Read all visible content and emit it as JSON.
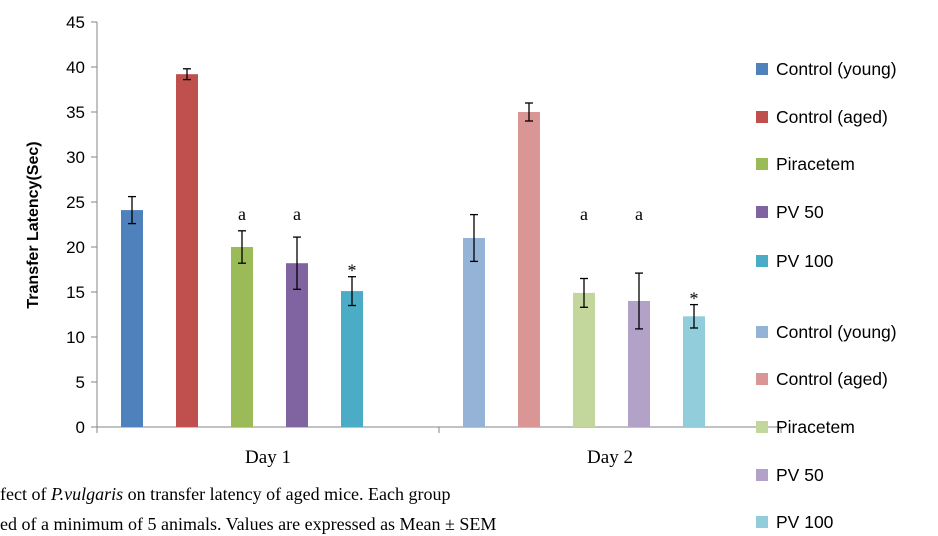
{
  "chart_data": {
    "type": "bar",
    "title": "",
    "xlabel": "",
    "ylabel": "Transfer Latency(Sec)",
    "ylim": [
      0,
      45
    ],
    "yticks": [
      0,
      5,
      10,
      15,
      20,
      25,
      30,
      35,
      40,
      45
    ],
    "grid": false,
    "legend_position": "right",
    "categories": [
      "Day 1",
      "Day 2"
    ],
    "groups": [
      {
        "category": "Day 1",
        "bars": [
          {
            "name": "Control (young)",
            "value": 24.1,
            "error": 1.5,
            "annotation": "",
            "color": "#4f81bd"
          },
          {
            "name": "Control (aged)",
            "value": 39.2,
            "error": 0.6,
            "annotation": "",
            "color": "#c0504d"
          },
          {
            "name": "Piracetem",
            "value": 20.0,
            "error": 1.8,
            "annotation": "a",
            "color": "#9bbb59"
          },
          {
            "name": "PV 50",
            "value": 18.2,
            "error": 2.9,
            "annotation": "a",
            "color": "#8064a2"
          },
          {
            "name": "PV 100",
            "value": 15.1,
            "error": 1.6,
            "annotation": "*",
            "color": "#4bacc6"
          }
        ]
      },
      {
        "category": "Day 2",
        "bars": [
          {
            "name": "Control (young)",
            "value": 21.0,
            "error": 2.6,
            "annotation": "",
            "color": "#95b3d7"
          },
          {
            "name": "Control (aged)",
            "value": 35.0,
            "error": 1.0,
            "annotation": "",
            "color": "#d99694"
          },
          {
            "name": "Piracetem",
            "value": 14.9,
            "error": 1.6,
            "annotation": "a",
            "color": "#c3d69b"
          },
          {
            "name": "PV 50",
            "value": 14.0,
            "error": 3.1,
            "annotation": "a",
            "color": "#b3a2c7"
          },
          {
            "name": "PV 100",
            "value": 12.3,
            "error": 1.3,
            "annotation": "*",
            "color": "#92cddc"
          }
        ]
      }
    ],
    "legend": [
      {
        "label": "Control (young)",
        "color": "#4f81bd"
      },
      {
        "label": "Control (aged)",
        "color": "#c0504d"
      },
      {
        "label": "Piracetem",
        "color": "#9bbb59"
      },
      {
        "label": "PV 50",
        "color": "#8064a2"
      },
      {
        "label": "PV 100",
        "color": "#4bacc6"
      },
      {
        "label": "Control (young)",
        "color": "#95b3d7"
      },
      {
        "label": "Control (aged)",
        "color": "#d99694"
      },
      {
        "label": "Piracetem",
        "color": "#c3d69b"
      },
      {
        "label": "PV 50",
        "color": "#b3a2c7"
      },
      {
        "label": "PV 100",
        "color": "#92cddc"
      }
    ]
  },
  "caption": {
    "line1_pre": "fect of ",
    "line1_italic": "P.vulgaris",
    "line1_post": " on transfer latency of aged mice. Each group",
    "line2": "ed of a minimum of 5 animals. Values are expressed as Mean ± SEM"
  }
}
